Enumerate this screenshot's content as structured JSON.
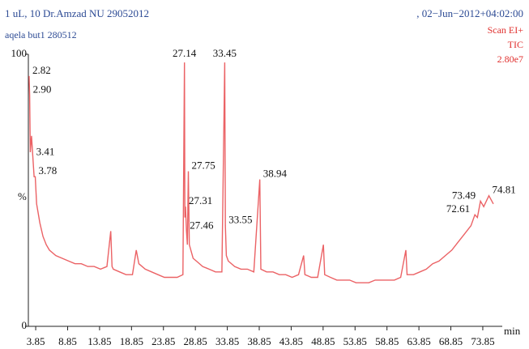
{
  "chart_data": {
    "type": "line",
    "title": "1 uL, 10 Dr.Amzad NU 29052012",
    "subtitle": "aqela but1 280512",
    "timestamp": ", 02−Jun−2012+04:02:00",
    "scan_mode": "Scan EI+",
    "trace": "TIC",
    "intensity": "2.80e7",
    "xlabel": "min",
    "ylabel": "%",
    "color": "#e8474a",
    "xlim": [
      2.7,
      76.9
    ],
    "ylim": [
      0,
      100
    ],
    "xticks": [
      3.85,
      8.85,
      13.85,
      18.85,
      23.85,
      28.85,
      33.85,
      38.85,
      43.85,
      48.85,
      53.85,
      58.85,
      63.85,
      68.85,
      73.85
    ],
    "yticks": [
      0,
      100
    ],
    "x": [
      2.82,
      2.9,
      3.0,
      3.2,
      3.41,
      3.6,
      3.78,
      4.0,
      4.5,
      5,
      5.5,
      6,
      7,
      8,
      9,
      10,
      11,
      12,
      13,
      14,
      15,
      15.6,
      15.8,
      16,
      17,
      18,
      19,
      19.6,
      20,
      21,
      22,
      23,
      24,
      25,
      26,
      26.9,
      27.14,
      27.2,
      27.31,
      27.46,
      27.6,
      27.75,
      27.9,
      28.5,
      29,
      30,
      31,
      32,
      33,
      33.45,
      33.55,
      33.7,
      34,
      35,
      36,
      37,
      38,
      38.94,
      39.1,
      40,
      41,
      42,
      43,
      44,
      45,
      45.8,
      46,
      47,
      48,
      48.9,
      49.1,
      50,
      51,
      52,
      53,
      54,
      55,
      56,
      57,
      58,
      59,
      60,
      61,
      61.8,
      62,
      63,
      64,
      65,
      66,
      67,
      68,
      69,
      70,
      71,
      72,
      72.61,
      73,
      73.49,
      74,
      74.81,
      75.5
    ],
    "values": [
      92,
      85,
      64,
      70,
      62,
      55,
      55,
      45,
      38,
      33,
      30,
      28,
      26,
      25,
      24,
      23,
      23,
      22,
      22,
      21,
      22,
      35,
      22,
      21,
      20,
      19,
      19,
      28,
      23,
      21,
      20,
      19,
      18,
      18,
      18,
      19,
      97,
      40,
      44,
      35,
      30,
      57,
      30,
      25,
      24,
      22,
      21,
      20,
      20,
      97,
      37,
      26,
      24,
      22,
      21,
      21,
      20,
      54,
      21,
      20,
      20,
      19,
      19,
      18,
      19,
      26,
      19,
      18,
      18,
      30,
      19,
      18,
      17,
      17,
      17,
      16,
      16,
      16,
      17,
      17,
      17,
      17,
      18,
      28,
      19,
      19,
      20,
      21,
      23,
      24,
      26,
      28,
      31,
      34,
      37,
      41,
      40,
      46,
      44,
      48,
      45
    ],
    "peaks": [
      {
        "label": "2.82",
        "x": 2.82,
        "value": 92
      },
      {
        "label": "2.90",
        "x": 2.9,
        "value": 85
      },
      {
        "label": "3.41",
        "x": 3.41,
        "value": 62
      },
      {
        "label": "3.78",
        "x": 3.78,
        "value": 55
      },
      {
        "label": "27.14",
        "x": 27.14,
        "value": 97
      },
      {
        "label": "27.75",
        "x": 27.75,
        "value": 57
      },
      {
        "label": "27.31",
        "x": 27.31,
        "value": 44
      },
      {
        "label": "27.46",
        "x": 27.46,
        "value": 35
      },
      {
        "label": "33.45",
        "x": 33.45,
        "value": 97
      },
      {
        "label": "33.55",
        "x": 33.55,
        "value": 37
      },
      {
        "label": "38.94",
        "x": 38.94,
        "value": 54
      },
      {
        "label": "72.61",
        "x": 72.61,
        "value": 41
      },
      {
        "label": "73.49",
        "x": 73.49,
        "value": 46
      },
      {
        "label": "74.81",
        "x": 74.81,
        "value": 48
      }
    ]
  }
}
